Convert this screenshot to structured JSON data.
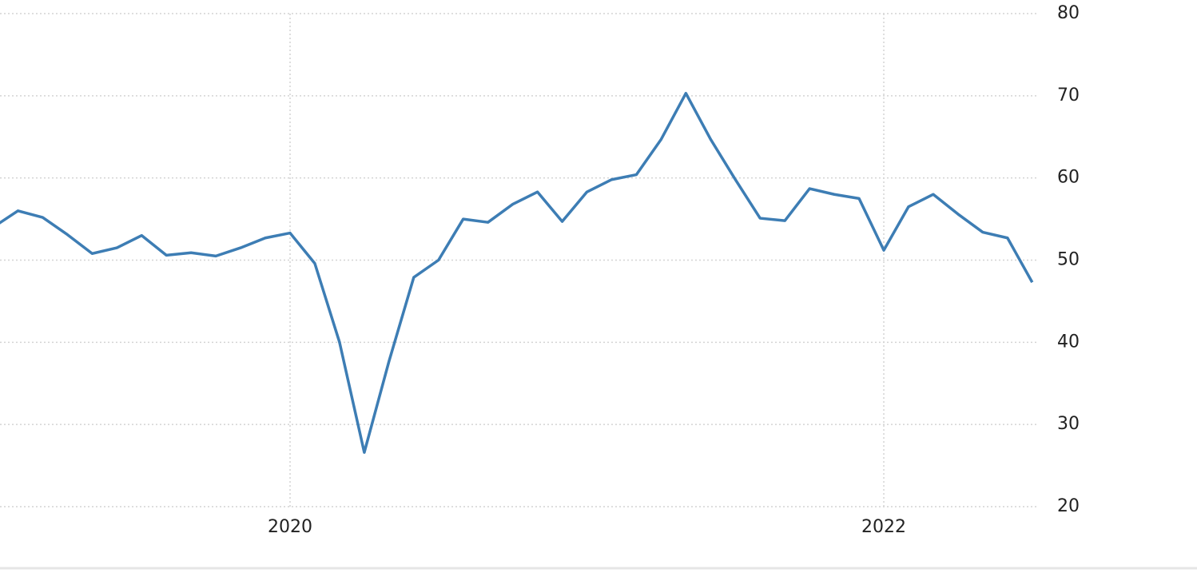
{
  "chart_data": {
    "type": "line",
    "categories": [
      null,
      null,
      null,
      null,
      null,
      null,
      null,
      null,
      null,
      null,
      null,
      null,
      "2020",
      null,
      null,
      null,
      null,
      null,
      null,
      null,
      null,
      null,
      null,
      null,
      null,
      null,
      null,
      null,
      null,
      null,
      null,
      null,
      null,
      null,
      null,
      null,
      "2022",
      null,
      null,
      null,
      null,
      null,
      null
    ],
    "series": [
      {
        "color": "#3d7db4",
        "values": [
          54.0,
          56.0,
          55.2,
          53.1,
          50.8,
          51.5,
          53.0,
          50.6,
          50.9,
          50.5,
          51.5,
          52.7,
          53.3,
          49.6,
          40.0,
          26.6,
          37.7,
          47.9,
          50.0,
          55.0,
          54.6,
          56.8,
          58.3,
          54.7,
          58.3,
          59.8,
          60.4,
          64.7,
          70.3,
          64.7,
          59.8,
          55.1,
          54.8,
          58.7,
          58.0,
          57.5,
          51.2,
          56.5,
          58.0,
          55.6,
          53.4,
          52.7,
          47.3
        ]
      }
    ],
    "ylim": [
      20,
      80
    ],
    "yticks": [
      20,
      30,
      40,
      50,
      60,
      70,
      80
    ],
    "grid": true
  }
}
